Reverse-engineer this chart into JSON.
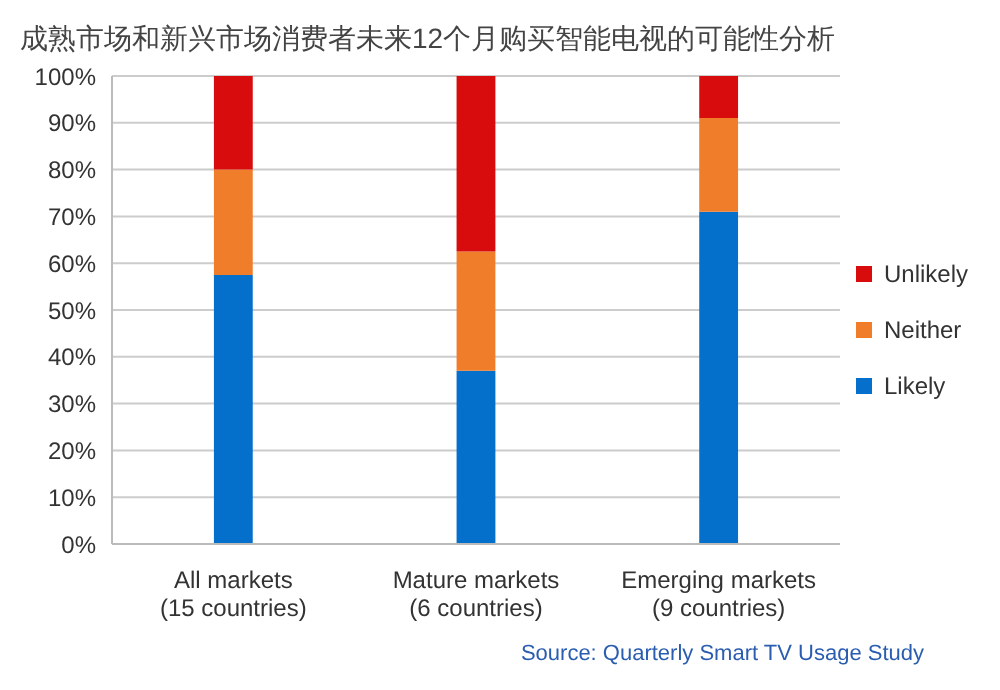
{
  "chart_data": {
    "type": "bar",
    "title": "成熟市场和新兴市场消费者未来12个月购买智能电视的可能性分析",
    "categories": [
      "All markets\n(15 countries)",
      "Mature markets\n(6 countries)",
      "Emerging markets\n(9 countries)"
    ],
    "stacked": true,
    "series": [
      {
        "name": "Likely",
        "color": "#0570cc",
        "values": [
          57.5,
          37,
          71
        ]
      },
      {
        "name": "Neither",
        "color": "#f07d2a",
        "values": [
          22.5,
          25.5,
          20
        ]
      },
      {
        "name": "Unlikely",
        "color": "#d80c0c",
        "values": [
          20,
          37.5,
          9
        ]
      }
    ],
    "ylim": [
      0,
      100
    ],
    "yticks": [
      {
        "value": 0,
        "label": "0%"
      },
      {
        "value": 10,
        "label": "10%"
      },
      {
        "value": 20,
        "label": "20%"
      },
      {
        "value": 30,
        "label": "30%"
      },
      {
        "value": 40,
        "label": "40%"
      },
      {
        "value": 50,
        "label": "50%"
      },
      {
        "value": 60,
        "label": "60%"
      },
      {
        "value": 70,
        "label": "70%"
      },
      {
        "value": 80,
        "label": "80%"
      },
      {
        "value": 90,
        "label": "90%"
      },
      {
        "value": 100,
        "label": "100%"
      }
    ],
    "grid": "y",
    "legend": "right",
    "annotations": [
      "Source: Quarterly Smart TV Usage Study"
    ]
  }
}
